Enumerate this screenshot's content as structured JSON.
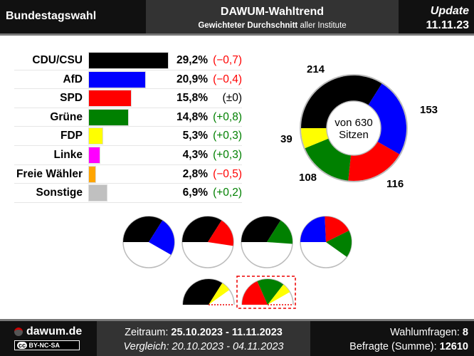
{
  "header": {
    "left": "Bundestagswahl",
    "title": "DAWUM-Wahltrend",
    "subtitle_bold": "Gewichteter Durchschnitt",
    "subtitle_rest": " aller Institute",
    "update_label": "Update",
    "update_date": "11.11.23"
  },
  "chart_data": {
    "type": "bar",
    "categories": [
      "CDU/CSU",
      "AfD",
      "SPD",
      "Grüne",
      "FDP",
      "Linke",
      "Freie Wähler",
      "Sonstige"
    ],
    "values": [
      29.2,
      20.9,
      15.8,
      14.8,
      5.3,
      4.3,
      2.8,
      6.9
    ],
    "value_labels": [
      "29,2%",
      "20,9%",
      "15,8%",
      "14,8%",
      "5,3%",
      "4,3%",
      "2,8%",
      "6,9%"
    ],
    "changes": [
      "(−0,7)",
      "(−0,4)",
      "(±0)",
      "(+0,8)",
      "(+0,3)",
      "(+0,3)",
      "(−0,5)",
      "(+0,2)"
    ],
    "change_colors": [
      "#ff0000",
      "#ff0000",
      "#000000",
      "#008000",
      "#008000",
      "#008000",
      "#ff0000",
      "#008000"
    ],
    "colors": [
      "#000000",
      "#0000ff",
      "#ff0000",
      "#008000",
      "#ffff00",
      "#ff00ff",
      "#ffa500",
      "#c0c0c0"
    ],
    "seats": {
      "total": 630,
      "center_label_1": "von 630",
      "center_label_2": "Sitzen",
      "parties": [
        "CDU/CSU",
        "AfD",
        "SPD",
        "Grüne",
        "FDP"
      ],
      "values": [
        214,
        153,
        116,
        108,
        39
      ],
      "colors": [
        "#000000",
        "#0000ff",
        "#ff0000",
        "#008000",
        "#ffff00"
      ]
    },
    "coalitions": [
      {
        "parties": [
          "CDU/CSU",
          "AfD"
        ],
        "seats": [
          214,
          153
        ],
        "colors": [
          "#000000",
          "#0000ff"
        ],
        "type": "full"
      },
      {
        "parties": [
          "CDU/CSU",
          "SPD"
        ],
        "seats": [
          214,
          116
        ],
        "colors": [
          "#000000",
          "#ff0000"
        ],
        "type": "full"
      },
      {
        "parties": [
          "CDU/CSU",
          "Grüne"
        ],
        "seats": [
          214,
          108
        ],
        "colors": [
          "#000000",
          "#008000"
        ],
        "type": "full"
      },
      {
        "parties": [
          "AfD",
          "SPD",
          "Grüne"
        ],
        "seats": [
          153,
          116,
          108
        ],
        "colors": [
          "#0000ff",
          "#ff0000",
          "#008000"
        ],
        "type": "full"
      },
      {
        "parties": [
          "CDU/CSU",
          "FDP"
        ],
        "seats": [
          214,
          39
        ],
        "colors": [
          "#000000",
          "#ffff00"
        ],
        "type": "half"
      },
      {
        "parties": [
          "SPD",
          "Grüne",
          "FDP"
        ],
        "seats": [
          116,
          108,
          39
        ],
        "colors": [
          "#ff0000",
          "#008000",
          "#ffff00"
        ],
        "type": "half",
        "highlighted": true
      }
    ]
  },
  "footer": {
    "site": "dawum.de",
    "license": "BY-NC-SA",
    "cc": "cc",
    "period_label": "Zeitraum: ",
    "period": "25.10.2023 - 11.11.2023",
    "compare": "Vergleich: 20.10.2023 - 04.11.2023",
    "polls_label": "Wahlumfragen: ",
    "polls": "8",
    "respondents_label": "Befragte (Summe): ",
    "respondents": "12610"
  }
}
